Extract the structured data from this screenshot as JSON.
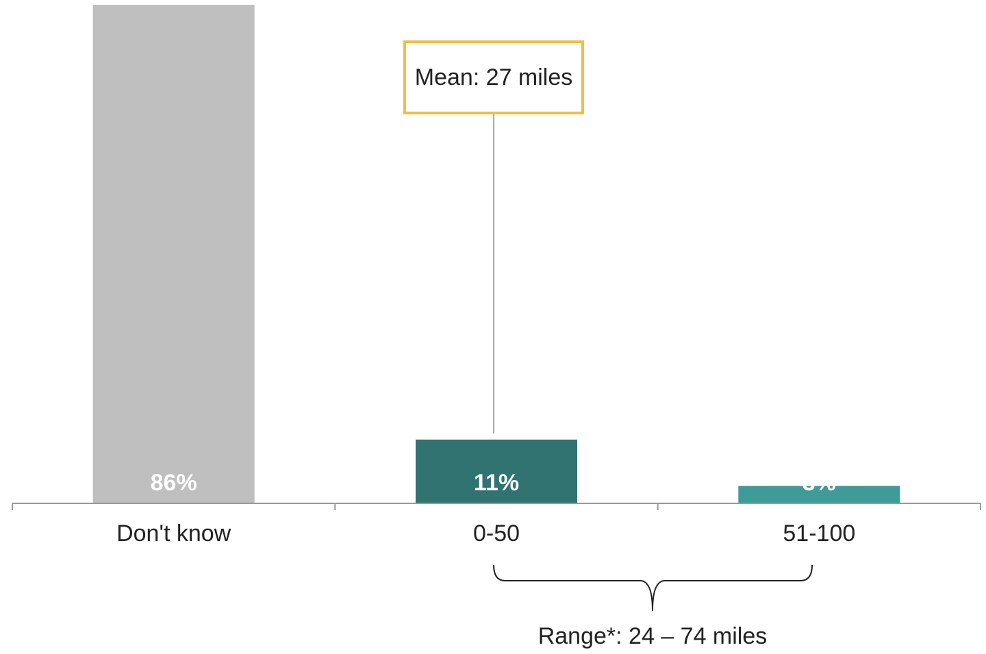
{
  "chart_data": {
    "type": "bar",
    "categories": [
      "Don't know",
      "0-50",
      "51-100"
    ],
    "values": [
      86,
      11,
      3
    ],
    "value_labels": [
      "86%",
      "11%",
      "3%"
    ],
    "colors": [
      "#BFBFBF",
      "#317370",
      "#3E9B98"
    ],
    "ylim": [
      0,
      86
    ],
    "grid": false,
    "annotations": {
      "mean": "Mean: 27 miles",
      "range": "Range*: 24 – 74 miles"
    }
  },
  "colors": {
    "mean_box_border": "#F0BE41",
    "axis": "#999999",
    "connector": "#AAAAAA",
    "brace": "#222222"
  }
}
